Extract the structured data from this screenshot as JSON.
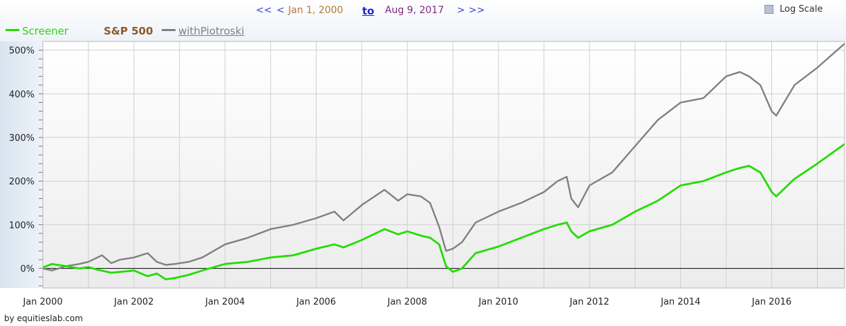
{
  "nav": {
    "first": "<<",
    "prev": "<",
    "date_from": "Jan 1, 2000",
    "to_label": "to",
    "date_to": "Aug 9, 2017",
    "next": ">",
    "last": ">>"
  },
  "log_scale_label": "Log Scale",
  "footer": "by equitieslab.com",
  "legend": [
    {
      "label": "Screener",
      "color": "#22dd00"
    },
    {
      "label": "S&P 500",
      "color": "#8a5a2b"
    },
    {
      "label": "withPiotroski",
      "color": "#808080"
    }
  ],
  "chart_data": {
    "type": "line",
    "x_ticks": [
      "Jan 2000",
      "Jan 2002",
      "Jan 2004",
      "Jan 2006",
      "Jan 2008",
      "Jan 2010",
      "Jan 2012",
      "Jan 2014",
      "Jan 2016"
    ],
    "y_ticks": [
      "0%",
      "100%",
      "200%",
      "300%",
      "400%",
      "500%"
    ],
    "xlim": [
      2000.0,
      2017.6
    ],
    "ylim": [
      -45,
      520
    ],
    "grid": true,
    "series": [
      {
        "name": "Screener",
        "color": "#22dd00",
        "x": [
          2000.0,
          2000.2,
          2000.5,
          2000.8,
          2001.0,
          2001.2,
          2001.5,
          2001.7,
          2002.0,
          2002.3,
          2002.5,
          2002.7,
          2002.9,
          2003.2,
          2003.5,
          2004.0,
          2004.5,
          2005.0,
          2005.5,
          2006.0,
          2006.4,
          2006.6,
          2007.0,
          2007.5,
          2007.8,
          2008.0,
          2008.3,
          2008.5,
          2008.7,
          2008.85,
          2009.0,
          2009.2,
          2009.5,
          2010.0,
          2010.5,
          2011.0,
          2011.3,
          2011.5,
          2011.6,
          2011.75,
          2012.0,
          2012.5,
          2013.0,
          2013.5,
          2014.0,
          2014.5,
          2015.0,
          2015.3,
          2015.5,
          2015.75,
          2016.0,
          2016.1,
          2016.5,
          2017.0,
          2017.6
        ],
        "values": [
          2,
          10,
          5,
          0,
          3,
          -3,
          -10,
          -8,
          -5,
          -18,
          -12,
          -25,
          -22,
          -15,
          -5,
          10,
          15,
          25,
          30,
          45,
          55,
          48,
          65,
          90,
          78,
          85,
          75,
          70,
          55,
          5,
          -8,
          0,
          35,
          50,
          70,
          90,
          100,
          105,
          85,
          70,
          85,
          100,
          130,
          155,
          190,
          200,
          220,
          230,
          235,
          220,
          175,
          165,
          205,
          240,
          285
        ]
      },
      {
        "name": "withPiotroski",
        "color": "#808080",
        "x": [
          2000.0,
          2000.2,
          2000.5,
          2000.8,
          2001.0,
          2001.3,
          2001.5,
          2001.7,
          2002.0,
          2002.3,
          2002.5,
          2002.7,
          2002.9,
          2003.2,
          2003.5,
          2004.0,
          2004.5,
          2005.0,
          2005.5,
          2006.0,
          2006.4,
          2006.6,
          2007.0,
          2007.5,
          2007.8,
          2008.0,
          2008.3,
          2008.5,
          2008.7,
          2008.85,
          2009.0,
          2009.2,
          2009.5,
          2010.0,
          2010.5,
          2011.0,
          2011.3,
          2011.5,
          2011.6,
          2011.75,
          2012.0,
          2012.5,
          2013.0,
          2013.5,
          2014.0,
          2014.5,
          2015.0,
          2015.3,
          2015.5,
          2015.75,
          2016.0,
          2016.1,
          2016.5,
          2017.0,
          2017.6
        ],
        "values": [
          0,
          -5,
          5,
          10,
          15,
          30,
          12,
          20,
          25,
          35,
          15,
          8,
          10,
          15,
          25,
          55,
          70,
          90,
          100,
          115,
          130,
          110,
          145,
          180,
          155,
          170,
          165,
          150,
          95,
          40,
          45,
          60,
          105,
          130,
          150,
          175,
          200,
          210,
          160,
          140,
          190,
          220,
          280,
          340,
          380,
          390,
          440,
          450,
          440,
          420,
          360,
          350,
          420,
          460,
          515
        ]
      }
    ]
  }
}
